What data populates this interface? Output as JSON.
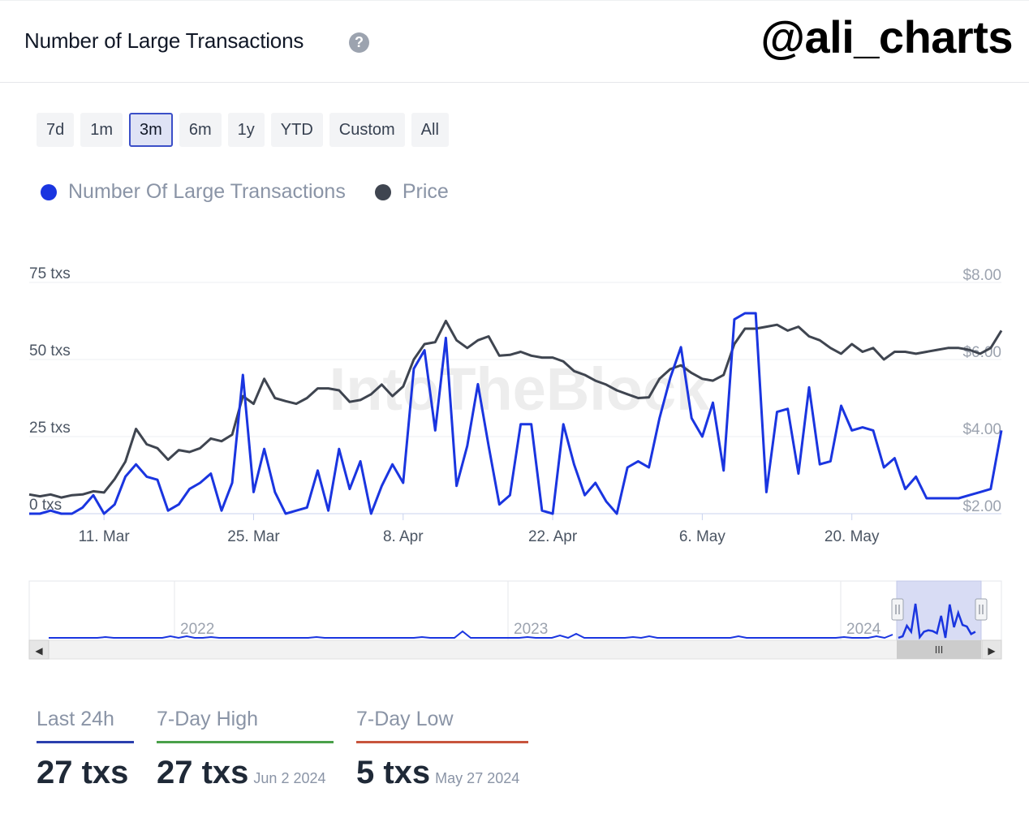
{
  "header": {
    "title": "Number of Large Transactions",
    "help_icon": "question-circle-icon",
    "handle": "@ali_charts"
  },
  "ranges": [
    {
      "label": "7d",
      "active": false
    },
    {
      "label": "1m",
      "active": false
    },
    {
      "label": "3m",
      "active": true
    },
    {
      "label": "6m",
      "active": false
    },
    {
      "label": "1y",
      "active": false
    },
    {
      "label": "YTD",
      "active": false
    },
    {
      "label": "Custom",
      "active": false
    },
    {
      "label": "All",
      "active": false
    }
  ],
  "legend": [
    {
      "label": "Number Of Large Transactions",
      "color": "#1a35e0"
    },
    {
      "label": "Price",
      "color": "#3f4550"
    }
  ],
  "chart_data": {
    "type": "line",
    "series": [
      {
        "name": "Number Of Large Transactions",
        "color": "#1a35e0",
        "axis": "left",
        "values": [
          0,
          0,
          1,
          0,
          0,
          2,
          6,
          0,
          3,
          12,
          16,
          12,
          11,
          1,
          3,
          8,
          10,
          13,
          1,
          10,
          45,
          7,
          21,
          7,
          0,
          1,
          2,
          14,
          1,
          21,
          8,
          17,
          0,
          9,
          16,
          10,
          47,
          53,
          27,
          57,
          9,
          22,
          42,
          22,
          3,
          6,
          29,
          29,
          1,
          0,
          29,
          16,
          6,
          10,
          4,
          0,
          15,
          17,
          15,
          31,
          44,
          54,
          31,
          25,
          36,
          14,
          63,
          65,
          65,
          7,
          33,
          34,
          13,
          41,
          16,
          17,
          35,
          27,
          28,
          27,
          15,
          18,
          8,
          12,
          5,
          5,
          5,
          5,
          6,
          7,
          8,
          27
        ]
      },
      {
        "name": "Price",
        "color": "#3f4550",
        "axis": "right",
        "values": [
          2.5,
          2.45,
          2.5,
          2.42,
          2.48,
          2.5,
          2.58,
          2.55,
          2.9,
          3.35,
          4.2,
          3.8,
          3.7,
          3.4,
          3.65,
          3.6,
          3.7,
          3.95,
          3.88,
          4.05,
          5.05,
          4.85,
          5.5,
          5.0,
          4.92,
          4.85,
          5.0,
          5.25,
          5.25,
          5.2,
          4.9,
          4.95,
          5.1,
          5.35,
          5.05,
          5.3,
          6.0,
          6.4,
          6.45,
          7.0,
          6.5,
          6.3,
          6.5,
          6.6,
          6.1,
          6.12,
          6.2,
          6.1,
          6.05,
          6.05,
          5.95,
          5.7,
          5.6,
          5.45,
          5.35,
          5.2,
          5.1,
          5.0,
          5.02,
          5.5,
          5.75,
          5.85,
          5.65,
          5.5,
          5.45,
          5.6,
          6.4,
          6.8,
          6.8,
          6.85,
          6.9,
          6.75,
          6.85,
          6.6,
          6.5,
          6.3,
          6.15,
          6.4,
          6.2,
          6.3,
          6.0,
          6.2,
          6.2,
          6.15,
          6.2,
          6.25,
          6.3,
          6.3,
          6.25,
          6.15,
          6.3,
          6.75
        ]
      }
    ],
    "x_start": "2024-03-04",
    "x_step_days": 1,
    "x_ticks": [
      "11. Mar",
      "25. Mar",
      "8. Apr",
      "22. Apr",
      "6. May",
      "20. May"
    ],
    "y_left": {
      "ticks": [
        "0 txs",
        "25 txs",
        "50 txs",
        "75 txs"
      ],
      "range": [
        0,
        75
      ]
    },
    "y_right": {
      "ticks": [
        "$2.00",
        "$4.00",
        "$6.00",
        "$8.00"
      ],
      "range": [
        2,
        8
      ]
    },
    "grid": true,
    "watermark": "IntoTheBlock"
  },
  "navigator": {
    "years": [
      "2022",
      "2023",
      "2024"
    ],
    "handle_grip": "III",
    "left_arrow": "◀",
    "right_arrow": "▶",
    "color": "#1a35e0"
  },
  "stats": [
    {
      "label": "Last 24h",
      "value": "27 txs",
      "date": "",
      "color": "#2b3fae"
    },
    {
      "label": "7-Day High",
      "value": "27 txs",
      "date": "Jun 2 2024",
      "color": "#4aa04a"
    },
    {
      "label": "7-Day Low",
      "value": "5 txs",
      "date": "May 27 2024",
      "color": "#c8553d"
    }
  ]
}
